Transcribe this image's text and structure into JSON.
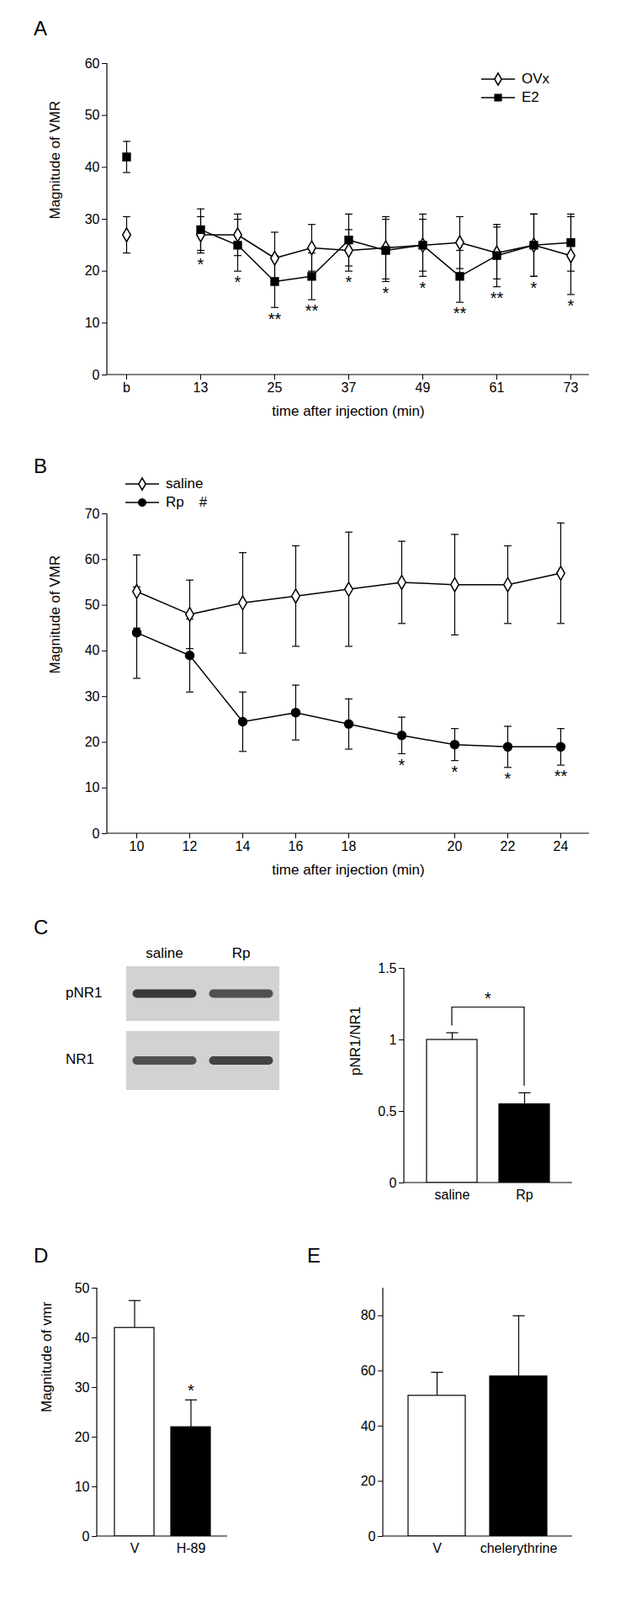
{
  "chart_data": [
    {
      "title": "A",
      "type": "line",
      "x_label": "time after injection (min)",
      "y_label": "Magnitude of VMR",
      "categories": [
        "b",
        null,
        "13",
        null,
        "25",
        null,
        "37",
        null,
        "49",
        null,
        "61",
        null,
        "73"
      ],
      "series": [
        {
          "name": "OVx",
          "color": "#000000",
          "marker": "open_diamond",
          "values": [
            27,
            null,
            27,
            27,
            22.5,
            24.5,
            24,
            24.5,
            25,
            25.5,
            23.5,
            25,
            23
          ],
          "errors": [
            3.5,
            null,
            3.5,
            4,
            5,
            4.5,
            4,
            6,
            5,
            5,
            5,
            6,
            7.5
          ]
        },
        {
          "name": "E2",
          "color": "#000000",
          "marker": "square",
          "values": [
            42,
            null,
            28,
            25,
            18,
            19,
            26,
            24,
            25,
            19,
            23,
            25,
            25.5
          ],
          "errors": [
            3,
            null,
            4,
            5,
            5,
            4.5,
            5,
            6,
            6,
            5,
            6,
            6,
            5.5
          ]
        }
      ],
      "significance": [
        null,
        null,
        "*",
        "*",
        "**",
        "**",
        "*",
        "*",
        "*",
        "**",
        "**",
        "*",
        "*"
      ],
      "ylim": [
        0,
        60
      ],
      "yticks": [
        0,
        10,
        20,
        30,
        40,
        50,
        60
      ],
      "legend": "top-right"
    },
    {
      "title": "B",
      "type": "line",
      "x_label": "time after injection (min)",
      "y_label": "Magnitude of VMR",
      "categories": [
        "10",
        "12",
        "14",
        "16",
        "18",
        null,
        "20",
        "22",
        "24"
      ],
      "series": [
        {
          "name": "saline",
          "color": "#000000",
          "marker": "open_diamond",
          "values": [
            53,
            48,
            50.5,
            52,
            53.5,
            55,
            54.5,
            54.5,
            57
          ],
          "errors": [
            8,
            7.5,
            11,
            11,
            12.5,
            9,
            11,
            8.5,
            11
          ]
        },
        {
          "name": "Rp",
          "color": "#000000",
          "marker": "circle",
          "values": [
            44,
            39,
            24.5,
            26.5,
            24,
            21.5,
            19.5,
            19,
            19
          ],
          "errors": [
            10,
            8,
            6.5,
            6,
            5.5,
            4,
            3.5,
            4.5,
            4
          ]
        }
      ],
      "annotations": [
        {
          "text": "#",
          "series": "Rp"
        }
      ],
      "significance": [
        null,
        null,
        null,
        null,
        null,
        "*",
        "*",
        "*",
        "**"
      ],
      "ylim": [
        0,
        70
      ],
      "yticks": [
        0,
        10,
        20,
        30,
        40,
        50,
        60,
        70
      ],
      "legend": "top-left"
    },
    {
      "title": "C",
      "type": "bar",
      "blot": {
        "lanes": [
          "saline",
          "Rp"
        ],
        "rows": [
          "pNR1",
          "NR1"
        ]
      },
      "y_label": "pNR1/NR1",
      "categories": [
        "saline",
        "Rp"
      ],
      "values": [
        1,
        0.55
      ],
      "errors": [
        0.05,
        0.08
      ],
      "colors": [
        "#ffffff",
        "#000000"
      ],
      "annotations": [
        {
          "text": "*",
          "from": "saline",
          "to": "Rp"
        }
      ],
      "ylim": [
        0,
        1.5
      ],
      "yticks": [
        0,
        0.5,
        1,
        1.5
      ]
    },
    {
      "title": "D",
      "type": "bar",
      "y_label": "Magnitude of vmr",
      "categories": [
        "V",
        "H-89"
      ],
      "values": [
        42,
        22
      ],
      "errors": [
        5.5,
        5.5
      ],
      "colors": [
        "#ffffff",
        "#000000"
      ],
      "significance": [
        null,
        "*"
      ],
      "ylim": [
        0,
        50
      ],
      "yticks": [
        0,
        10,
        20,
        30,
        40,
        50
      ]
    },
    {
      "title": "E",
      "type": "bar",
      "categories": [
        "V",
        "chelerythrine"
      ],
      "values": [
        51,
        58
      ],
      "errors": [
        8.5,
        22
      ],
      "colors": [
        "#ffffff",
        "#000000"
      ],
      "ylim": [
        0,
        90
      ],
      "yticks": [
        0,
        20,
        40,
        60,
        80
      ]
    }
  ]
}
